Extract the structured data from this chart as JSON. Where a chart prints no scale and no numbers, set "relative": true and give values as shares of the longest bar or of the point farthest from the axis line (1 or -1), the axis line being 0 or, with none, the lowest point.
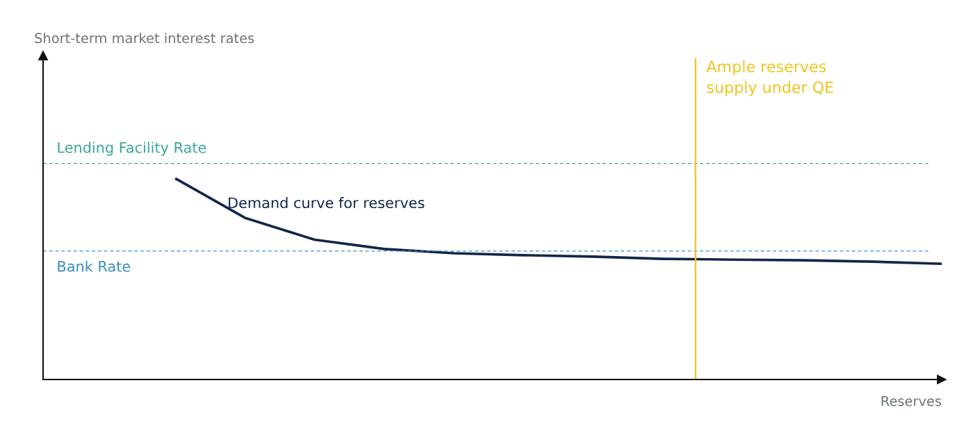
{
  "chart_data": {
    "type": "line",
    "relative": true,
    "xlabel": "Reserves",
    "marker": "none",
    "line_style": "solid",
    "categories": [
      null,
      null,
      null,
      null,
      null,
      null,
      null,
      null,
      null,
      null,
      null,
      null
    ],
    "series": [
      {
        "color": "#14254a",
        "values": [
          1.0,
          0.804,
          0.695,
          0.649,
          0.628,
          0.618,
          0.611,
          0.6,
          0.596,
          0.593,
          0.586,
          0.575
        ]
      }
    ],
    "ref_lines": [
      {
        "axis": "y",
        "value": 1.074,
        "label": "Lending Facility Rate",
        "color": "#3aa89a",
        "line_style": "dashed"
      },
      {
        "axis": "y",
        "value": 0.639,
        "label": "Bank Rate",
        "color": "#3a8fc0",
        "line_style": "dashed"
      }
    ],
    "annotations": [
      "Short-term market interest rates",
      "Demand curve for reserves",
      "Ample reserves\nsupply under QE"
    ]
  }
}
